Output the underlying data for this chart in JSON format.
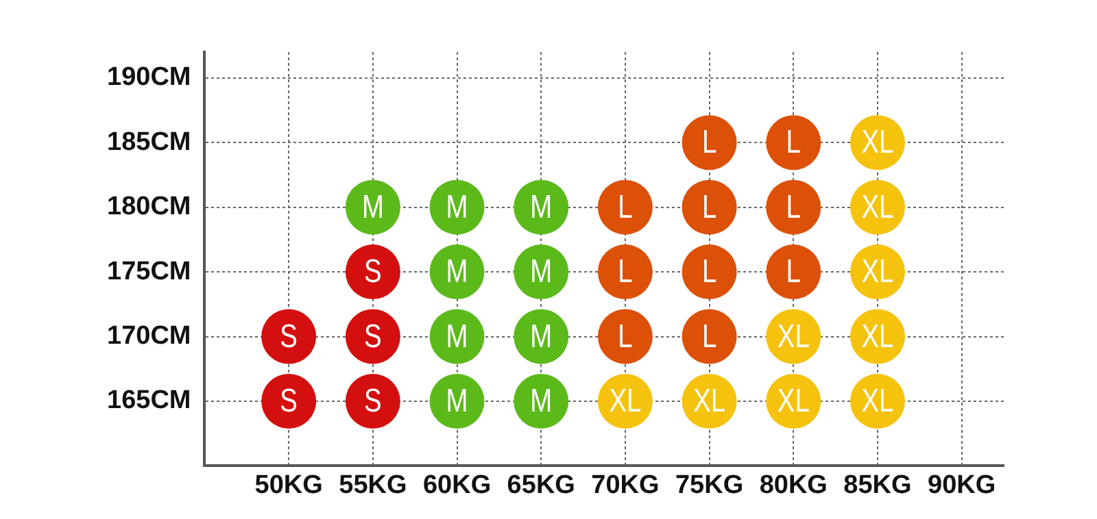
{
  "chart_data": {
    "type": "scatter",
    "xlim": [
      45,
      92.5
    ],
    "ylim": [
      160,
      192
    ],
    "xticks": [
      {
        "value": 50,
        "label": "50KG"
      },
      {
        "value": 55,
        "label": "55KG"
      },
      {
        "value": 60,
        "label": "60KG"
      },
      {
        "value": 65,
        "label": "65KG"
      },
      {
        "value": 70,
        "label": "70KG"
      },
      {
        "value": 75,
        "label": "75KG"
      },
      {
        "value": 80,
        "label": "80KG"
      },
      {
        "value": 85,
        "label": "85KG"
      },
      {
        "value": 90,
        "label": "90KG"
      }
    ],
    "yticks": [
      {
        "value": 165,
        "label": "165CM"
      },
      {
        "value": 170,
        "label": "170CM"
      },
      {
        "value": 175,
        "label": "175CM"
      },
      {
        "value": 180,
        "label": "180CM"
      },
      {
        "value": 185,
        "label": "185CM"
      },
      {
        "value": 190,
        "label": "190CM"
      }
    ],
    "grid": true,
    "legend": false,
    "marker": "circle",
    "series": [
      {
        "name": "S",
        "color": "#d40f0f",
        "x": [
          50,
          55,
          50,
          55,
          55
        ],
        "values": [
          165,
          165,
          170,
          170,
          175
        ]
      },
      {
        "name": "M",
        "color": "#5cb91a",
        "x": [
          60,
          65,
          60,
          65,
          60,
          65,
          55,
          60,
          65
        ],
        "values": [
          165,
          165,
          170,
          170,
          175,
          175,
          180,
          180,
          180
        ]
      },
      {
        "name": "L",
        "color": "#dc5008",
        "x": [
          70,
          75,
          70,
          75,
          80,
          70,
          75,
          80,
          75,
          80
        ],
        "values": [
          170,
          170,
          175,
          175,
          175,
          180,
          180,
          180,
          185,
          185
        ]
      },
      {
        "name": "XL",
        "color": "#f5c20e",
        "x": [
          70,
          75,
          80,
          85,
          80,
          85,
          85,
          85,
          85
        ],
        "values": [
          165,
          165,
          165,
          165,
          170,
          170,
          175,
          180,
          185
        ]
      }
    ]
  }
}
